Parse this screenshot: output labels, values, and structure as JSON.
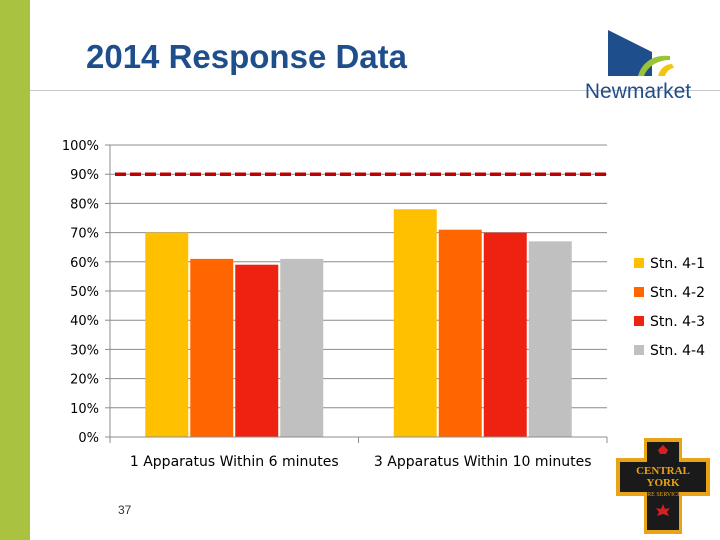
{
  "slide": {
    "title": "2014 Response Data",
    "page_number": "37"
  },
  "logo": {
    "org_name": "Newmarket",
    "colors": {
      "blue": "#1f4e8c",
      "green": "#9cc23a",
      "yellow": "#f2c511"
    }
  },
  "badge": {
    "line1": "CENTRAL",
    "line2": "YORK",
    "line3": "FIRE SERVICES",
    "colors": {
      "outline": "#e8a317",
      "body": "#1a1a1a",
      "accent": "#d42020"
    }
  },
  "colors": {
    "side_bar": "#a9c23f",
    "title": "#1f4e8c"
  },
  "chart_data": {
    "type": "bar",
    "title": "",
    "xlabel": "",
    "ylabel": "",
    "ylim": [
      0,
      100
    ],
    "y_ticks": [
      0,
      10,
      20,
      30,
      40,
      50,
      60,
      70,
      80,
      90,
      100
    ],
    "y_tick_labels": [
      "0%",
      "10%",
      "20%",
      "30%",
      "40%",
      "50%",
      "60%",
      "70%",
      "80%",
      "90%",
      "100%"
    ],
    "grid": true,
    "legend_position": "right",
    "categories": [
      "1 Apparatus Within 6 minutes",
      "3 Apparatus Within 10 minutes"
    ],
    "series": [
      {
        "name": "Stn. 4-1",
        "color": "#ffc000",
        "values": [
          70,
          78
        ]
      },
      {
        "name": "Stn. 4-2",
        "color": "#ff6600",
        "values": [
          61,
          71
        ]
      },
      {
        "name": "Stn. 4-3",
        "color": "#ee2211",
        "values": [
          59,
          70
        ]
      },
      {
        "name": "Stn. 4-4",
        "color": "#c0c0c0",
        "values": [
          61,
          67
        ]
      }
    ],
    "reference_line": {
      "value": 90,
      "color": "#c00000",
      "style": "dashed"
    }
  }
}
